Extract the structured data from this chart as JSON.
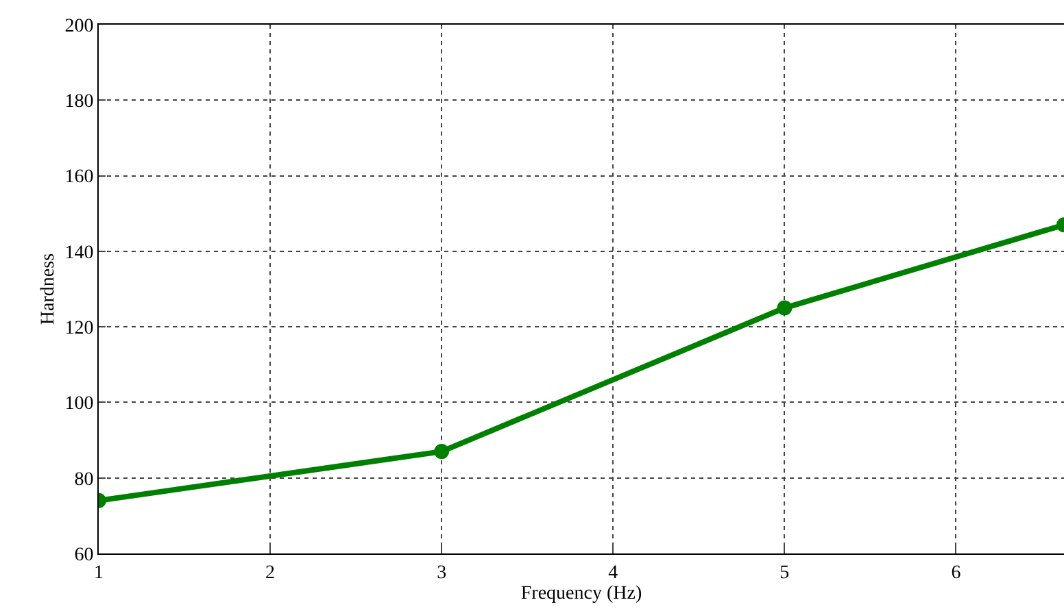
{
  "chart_data": {
    "type": "line",
    "xlabel": "Frequency (Hz)",
    "ylabel": "Hardness",
    "x": [
      1,
      3,
      5,
      6.63
    ],
    "values": [
      74,
      87,
      125,
      147
    ],
    "color": "#008000",
    "xlim": [
      1,
      6.63
    ],
    "xticks": [
      1,
      2,
      3,
      4,
      5,
      6
    ],
    "ylim": [
      60,
      200
    ],
    "yticks": [
      60,
      80,
      100,
      120,
      140,
      160,
      180,
      200
    ],
    "grid": true,
    "marker": "circle",
    "line_style": "solid"
  }
}
